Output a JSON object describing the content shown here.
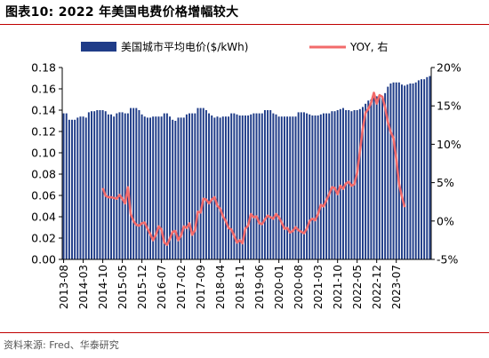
{
  "header": {
    "title": "图表10: 2022 年美国电费价格增幅较大"
  },
  "footer": {
    "source": "资料来源: Fred、华泰研究"
  },
  "colors": {
    "bar": "#1f3c88",
    "line": "#f26b6b",
    "accent_rule": "#c00000"
  },
  "chart_data": {
    "type": "bar",
    "x_tick_labels": [
      "2013-08",
      "2014-03",
      "2014-10",
      "2015-05",
      "2015-12",
      "2016-07",
      "2017-02",
      "2017-09",
      "2018-04",
      "2018-11",
      "2019-06",
      "2020-01",
      "2020-08",
      "2021-03",
      "2021-10",
      "2022-05",
      "2022-12",
      "2023-07"
    ],
    "ylim": [
      0,
      0.18
    ],
    "yticks": [
      "0.00",
      "0.02",
      "0.04",
      "0.06",
      "0.08",
      "0.10",
      "0.12",
      "0.14",
      "0.16",
      "0.18"
    ],
    "y2lim": [
      -5,
      20
    ],
    "y2ticks": [
      "-5%",
      "0%",
      "5%",
      "10%",
      "15%",
      "20%"
    ],
    "legend": {
      "placement": "top"
    },
    "series": [
      {
        "name": "美国城市平均电价($/kWh)",
        "kind": "bar",
        "axis": "left",
        "values": [
          0.137,
          0.137,
          0.131,
          0.131,
          0.131,
          0.133,
          0.134,
          0.134,
          0.133,
          0.138,
          0.139,
          0.139,
          0.14,
          0.14,
          0.14,
          0.139,
          0.136,
          0.136,
          0.134,
          0.137,
          0.138,
          0.138,
          0.137,
          0.137,
          0.142,
          0.142,
          0.142,
          0.14,
          0.136,
          0.134,
          0.133,
          0.133,
          0.134,
          0.134,
          0.134,
          0.134,
          0.137,
          0.137,
          0.134,
          0.131,
          0.13,
          0.133,
          0.133,
          0.133,
          0.136,
          0.137,
          0.137,
          0.137,
          0.142,
          0.142,
          0.142,
          0.14,
          0.137,
          0.135,
          0.133,
          0.134,
          0.133,
          0.134,
          0.134,
          0.134,
          0.137,
          0.137,
          0.136,
          0.135,
          0.135,
          0.135,
          0.135,
          0.136,
          0.137,
          0.137,
          0.137,
          0.137,
          0.14,
          0.14,
          0.14,
          0.137,
          0.136,
          0.134,
          0.134,
          0.134,
          0.134,
          0.134,
          0.134,
          0.134,
          0.138,
          0.138,
          0.138,
          0.137,
          0.136,
          0.135,
          0.135,
          0.135,
          0.136,
          0.137,
          0.137,
          0.137,
          0.139,
          0.139,
          0.14,
          0.141,
          0.142,
          0.14,
          0.14,
          0.139,
          0.14,
          0.14,
          0.141,
          0.143,
          0.146,
          0.149,
          0.15,
          0.152,
          0.153,
          0.152,
          0.153,
          0.156,
          0.162,
          0.165,
          0.166,
          0.166,
          0.166,
          0.164,
          0.163,
          0.164,
          0.165,
          0.165,
          0.166,
          0.168,
          0.169,
          0.169,
          0.171,
          0.172
        ]
      },
      {
        "name": "YOY, 右",
        "kind": "line",
        "axis": "right",
        "start_index": 14,
        "values": [
          4.3,
          3.3,
          3.1,
          3.1,
          3.0,
          2.9,
          3.4,
          2.9,
          2.3,
          4.4,
          0.9,
          0.0,
          -0.5,
          -0.6,
          -0.3,
          -0.2,
          -1.0,
          -1.7,
          -2.5,
          -1.8,
          -0.7,
          -1.1,
          -2.8,
          -3.1,
          -2.3,
          -1.4,
          -1.3,
          -2.5,
          -1.9,
          -0.7,
          -0.9,
          -0.3,
          -1.8,
          -1.2,
          1.2,
          1.1,
          2.9,
          2.8,
          2.3,
          2.8,
          3.1,
          2.0,
          1.6,
          0.6,
          0.0,
          -0.9,
          -1.1,
          -1.9,
          -2.8,
          -2.5,
          -2.9,
          -1.0,
          -0.6,
          0.9,
          0.5,
          0.6,
          -0.3,
          -0.4,
          0.2,
          0.7,
          0.5,
          0.3,
          0.9,
          0.5,
          -0.2,
          -1.0,
          -0.9,
          -1.5,
          -1.3,
          -0.8,
          -1.2,
          -1.4,
          -1.6,
          -1.0,
          0.0,
          0.3,
          0.1,
          0.9,
          2.1,
          1.9,
          2.7,
          3.5,
          4.4,
          4.3,
          3.5,
          4.6,
          4.2,
          4.9,
          5.1,
          4.6,
          4.8,
          6.3,
          9.1,
          12.0,
          14.1,
          14.6,
          15.4,
          16.7,
          15.3,
          16.4,
          16.2,
          14.8,
          12.9,
          11.6,
          10.8,
          8.1,
          4.8,
          3.2,
          1.8
        ]
      }
    ]
  }
}
